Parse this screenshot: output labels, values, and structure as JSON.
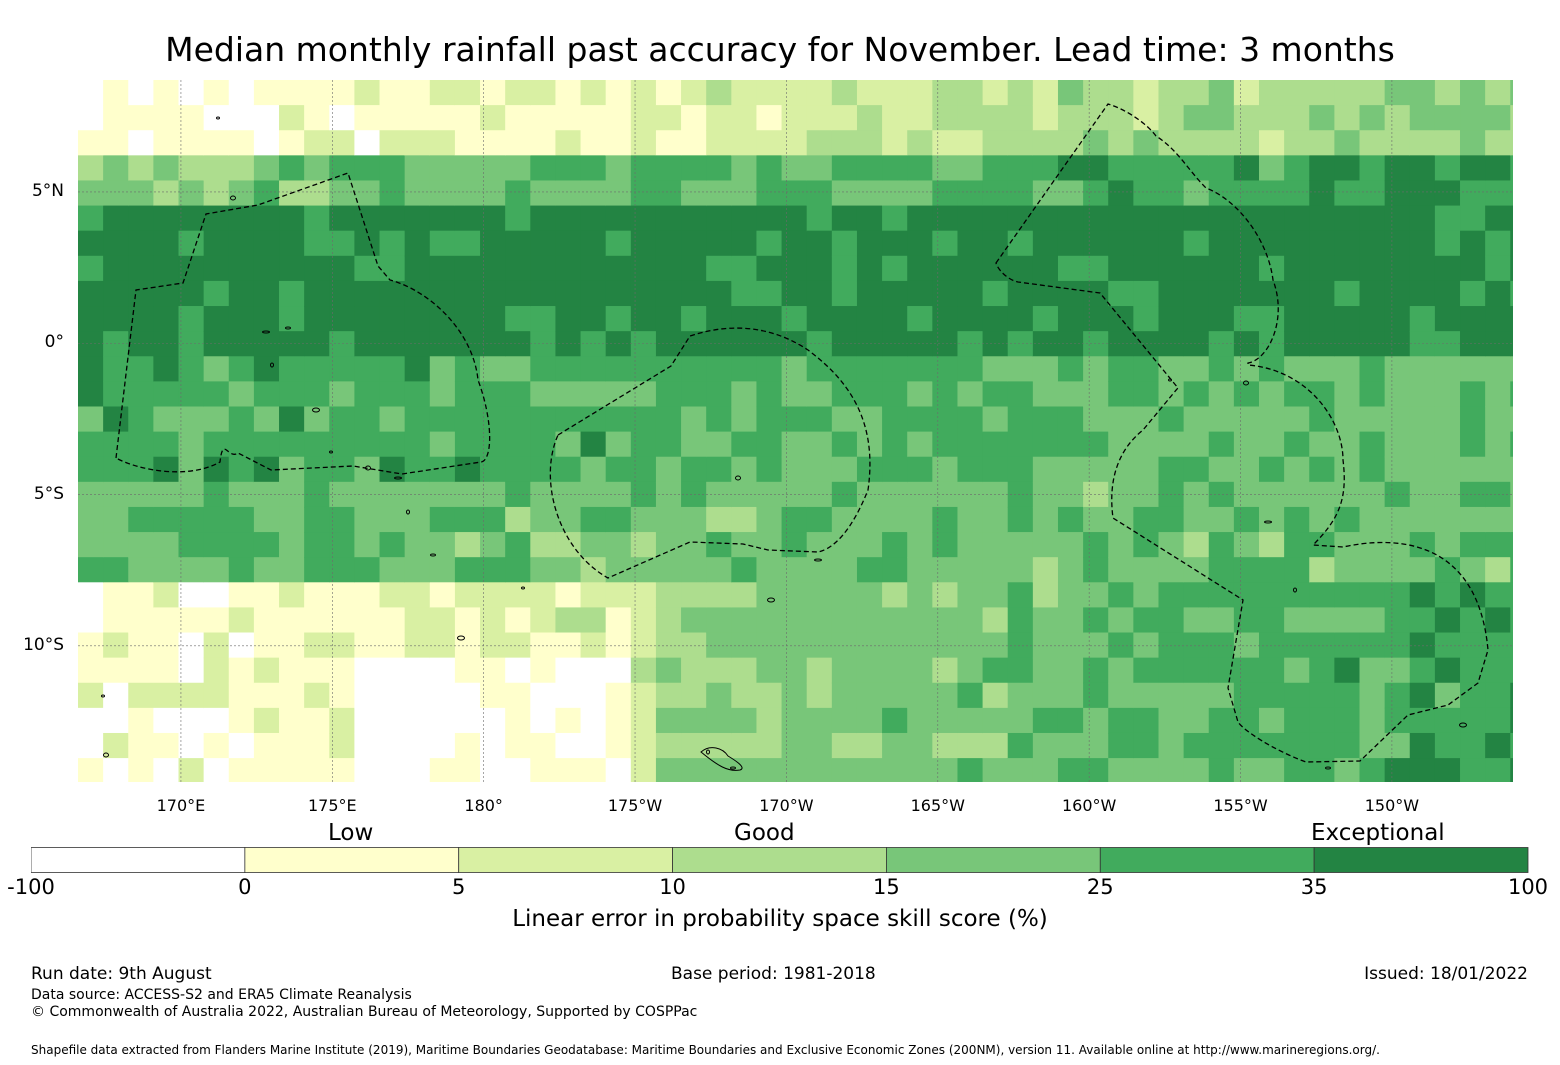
{
  "title": "Median monthly rainfall past accuracy for November. Lead time: 3 months",
  "map": {
    "lat_labels": [
      {
        "text": "5°N",
        "lat": 5
      },
      {
        "text": "0°",
        "lat": 0
      },
      {
        "text": "5°S",
        "lat": -5
      },
      {
        "text": "10°S",
        "lat": -10
      }
    ],
    "lon_labels": [
      {
        "text": "170°E",
        "lon": 170
      },
      {
        "text": "175°E",
        "lon": 175
      },
      {
        "text": "180°",
        "lon": 180
      },
      {
        "text": "175°W",
        "lon": 185
      },
      {
        "text": "170°W",
        "lon": 190
      },
      {
        "text": "165°W",
        "lon": 195
      },
      {
        "text": "160°W",
        "lon": 200
      },
      {
        "text": "155°W",
        "lon": 205
      },
      {
        "text": "150°W",
        "lon": 210
      }
    ],
    "extent": {
      "lon_min": 166.6,
      "lon_max": 214.0,
      "lat_min": -14.5,
      "lat_max": 8.7
    },
    "grid_cell_deg": 0.83,
    "colors": {
      "below_0": "#ffffff",
      "0_5": "#ffffcc",
      "5_10": "#d9f0a3",
      "10_15": "#addd8e",
      "15_25": "#78c679",
      "25_35": "#41ab5d",
      "35_100": "#238443"
    },
    "gridlines": true,
    "boundaries": "dashed EEZ outlines"
  },
  "legend": {
    "categories": [
      {
        "text": "Low"
      },
      {
        "text": "Good"
      },
      {
        "text": "Exceptional"
      }
    ],
    "bins": [
      {
        "from": -100,
        "to": 0,
        "color": "#ffffff"
      },
      {
        "from": 0,
        "to": 5,
        "color": "#ffffcc"
      },
      {
        "from": 5,
        "to": 10,
        "color": "#d9f0a3"
      },
      {
        "from": 10,
        "to": 15,
        "color": "#addd8e"
      },
      {
        "from": 15,
        "to": 25,
        "color": "#78c679"
      },
      {
        "from": 25,
        "to": 35,
        "color": "#41ab5d"
      },
      {
        "from": 35,
        "to": 100,
        "color": "#238443"
      }
    ],
    "ticks": [
      "-100",
      "0",
      "5",
      "10",
      "15",
      "25",
      "35",
      "100"
    ],
    "label": "Linear error in probability space skill score (%)"
  },
  "footer": {
    "run_date": "Run date: 9th August",
    "base_period": "Base period: 1981-2018",
    "issued": "Issued: 18/01/2022",
    "data_source": "Data source: ACCESS-S2 and ERA5 Climate Reanalysis",
    "copyright": "© Commonwealth of Australia 2022, Australian Bureau of Meteorology, Supported by COSPPac",
    "shapefile": "Shapefile data extracted from Flanders Marine Institute (2019), Maritime Boundaries Geodatabase: Maritime Boundaries and Exclusive Economic Zones (200NM), version 11. Available online at http://www.marineregions.org/."
  }
}
